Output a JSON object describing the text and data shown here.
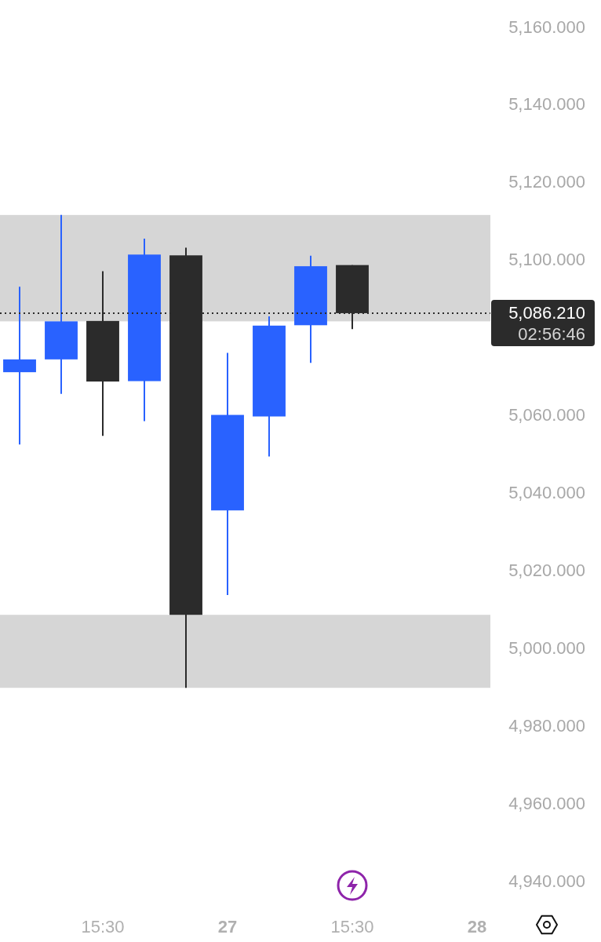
{
  "chart_data": {
    "type": "candlestick",
    "categories": [
      null,
      null,
      "15:30",
      null,
      null,
      "27",
      null,
      null,
      "15:30",
      null,
      null,
      "28"
    ],
    "ohlc": [
      [
        5071.0,
        5093.0,
        5052.4,
        5074.3
      ],
      [
        5074.3,
        5111.5,
        5065.4,
        5084.1
      ],
      [
        5084.2,
        5097.0,
        5054.6,
        5068.6
      ],
      [
        5068.7,
        5105.4,
        5058.4,
        5101.3
      ],
      [
        5101.1,
        5103.1,
        4989.7,
        5008.5
      ],
      [
        5035.4,
        5076.0,
        5013.6,
        5060.0
      ],
      [
        5059.6,
        5085.4,
        5049.3,
        5083.0
      ],
      [
        5083.1,
        5101.0,
        5073.4,
        5098.3
      ],
      [
        5098.6,
        5098.6,
        5082.1,
        5086.21
      ],
      null,
      null,
      null
    ],
    "colors": [
      "#2962ff",
      "#2962ff",
      "#2b2b2b",
      "#2962ff",
      "#2b2b2b",
      "#2962ff",
      "#2962ff",
      "#2962ff",
      "#2b2b2b",
      null,
      null,
      null
    ],
    "ylim": [
      4940,
      5160
    ],
    "yticks": [
      {
        "value": 4940,
        "label": "4,940.000"
      },
      {
        "value": 4960,
        "label": "4,960.000"
      },
      {
        "value": 4980,
        "label": "4,980.000"
      },
      {
        "value": 5000,
        "label": "5,000.000"
      },
      {
        "value": 5020,
        "label": "5,020.000"
      },
      {
        "value": 5040,
        "label": "5,040.000"
      },
      {
        "value": 5060,
        "label": "5,060.000"
      },
      {
        "value": 5100,
        "label": "5,100.000"
      },
      {
        "value": 5120,
        "label": "5,120.000"
      },
      {
        "value": 5140,
        "label": "5,140.000"
      },
      {
        "value": 5160,
        "label": "5,160.000"
      }
    ],
    "bands": [
      {
        "axis": "y",
        "from": 5084.1,
        "to": 5111.5,
        "color": "#d6d6d6"
      },
      {
        "axis": "y",
        "from": 4989.7,
        "to": 5008.5,
        "color": "#d6d6d6"
      }
    ],
    "ref_lines": [
      {
        "axis": "y",
        "value": 5086.21,
        "label": "5,086.210",
        "color": "#2b2b2b",
        "line_style": "dotted"
      }
    ],
    "annotations": [
      "02:56:46"
    ]
  }
}
